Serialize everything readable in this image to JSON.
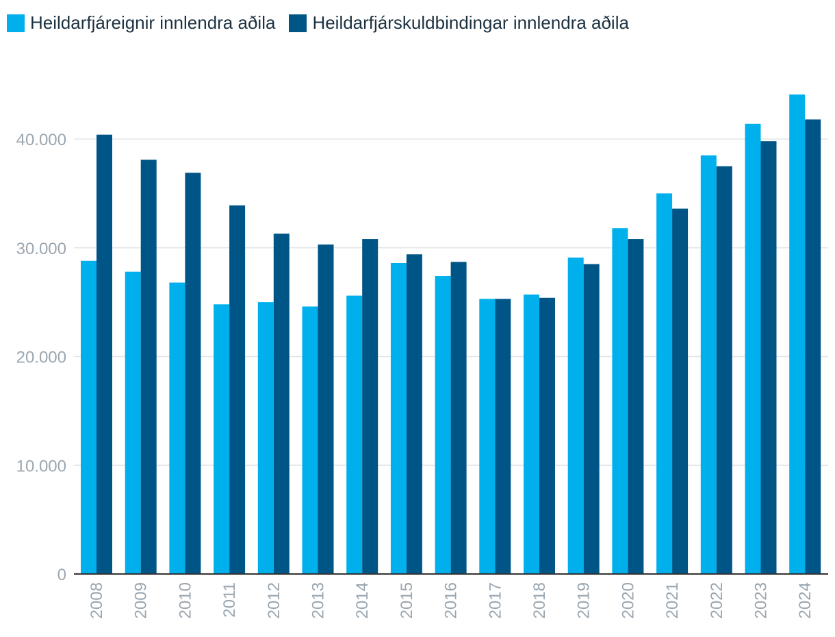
{
  "chart_data": {
    "type": "bar",
    "title": "",
    "xlabel": "",
    "ylabel": "",
    "categories": [
      "2008",
      "2009",
      "2010",
      "2011",
      "2012",
      "2013",
      "2014",
      "2015",
      "2016",
      "2017",
      "2018",
      "2019",
      "2020",
      "2021",
      "2022",
      "2023",
      "2024"
    ],
    "series": [
      {
        "name": "Heildarfjáreignir innlendra aðila",
        "color": "#00b0ec",
        "values": [
          28800,
          27800,
          26800,
          24800,
          25000,
          24600,
          25600,
          28600,
          27400,
          25300,
          25700,
          29100,
          31800,
          35000,
          38500,
          41400,
          44100
        ]
      },
      {
        "name": "Heildarfjárskuldbindingar innlendra aðila",
        "color": "#005587",
        "values": [
          40400,
          38100,
          36900,
          33900,
          31300,
          30300,
          30800,
          29400,
          28700,
          25300,
          25400,
          28500,
          30800,
          33600,
          37500,
          39800,
          41800
        ]
      }
    ],
    "ylim": [
      0,
      45000
    ],
    "yticks": [
      0,
      10000,
      20000,
      30000,
      40000
    ],
    "ytick_labels": [
      "0",
      "10.000",
      "20.000",
      "30.000",
      "40.000"
    ],
    "grid": true,
    "legend_position": "top-left"
  }
}
